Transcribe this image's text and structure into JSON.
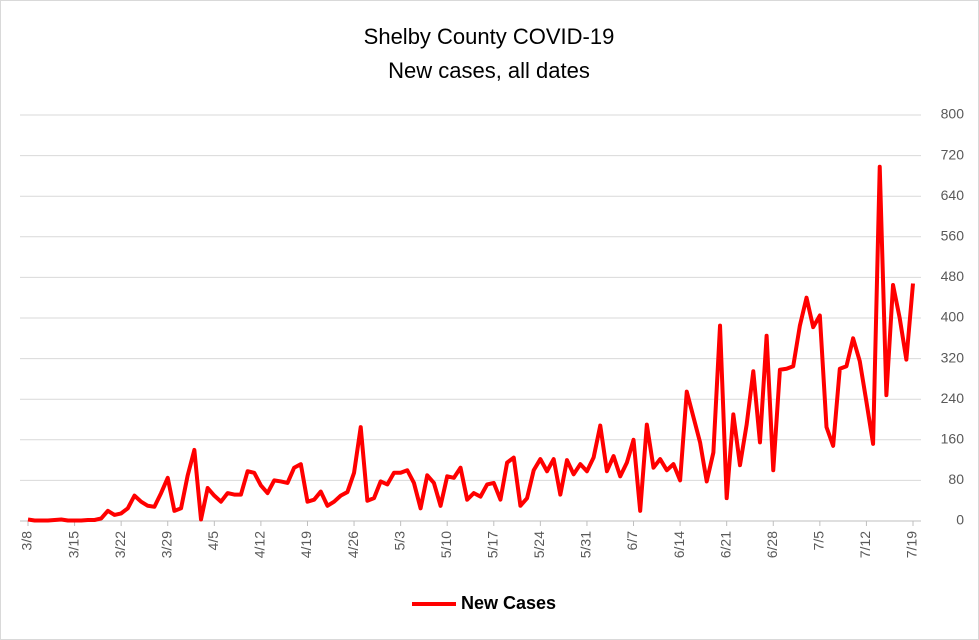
{
  "chart_data": {
    "type": "line",
    "title": "Shelby County COVID-19",
    "subtitle": "New cases, all dates",
    "categories": [
      "3/8",
      null,
      null,
      null,
      null,
      null,
      null,
      "3/15",
      null,
      null,
      null,
      null,
      null,
      null,
      "3/22",
      null,
      null,
      null,
      null,
      null,
      null,
      "3/29",
      null,
      null,
      null,
      null,
      null,
      null,
      "4/5",
      null,
      null,
      null,
      null,
      null,
      null,
      "4/12",
      null,
      null,
      null,
      null,
      null,
      null,
      "4/19",
      null,
      null,
      null,
      null,
      null,
      null,
      "4/26",
      null,
      null,
      null,
      null,
      null,
      null,
      "5/3",
      null,
      null,
      null,
      null,
      null,
      null,
      "5/10",
      null,
      null,
      null,
      null,
      null,
      null,
      "5/17",
      null,
      null,
      null,
      null,
      null,
      null,
      "5/24",
      null,
      null,
      null,
      null,
      null,
      null,
      "5/31",
      null,
      null,
      null,
      null,
      null,
      null,
      "6/7",
      null,
      null,
      null,
      null,
      null,
      null,
      "6/14",
      null,
      null,
      null,
      null,
      null,
      null,
      "6/21",
      null,
      null,
      null,
      null,
      null,
      null,
      "6/28",
      null,
      null,
      null,
      null,
      null,
      null,
      "7/5",
      null,
      null,
      null,
      null,
      null,
      null,
      "7/12",
      null,
      null,
      null,
      null,
      null,
      null,
      "7/19"
    ],
    "series": [
      {
        "name": "New Cases",
        "color": "#ff0000",
        "values": [
          3,
          1,
          1,
          1,
          2,
          3,
          1,
          1,
          1,
          2,
          2,
          5,
          20,
          12,
          15,
          25,
          50,
          38,
          30,
          28,
          55,
          85,
          20,
          25,
          90,
          140,
          3,
          65,
          50,
          38,
          55,
          52,
          52,
          98,
          95,
          70,
          55,
          80,
          78,
          75,
          105,
          112,
          38,
          42,
          58,
          30,
          38,
          50,
          57,
          95,
          185,
          40,
          45,
          78,
          72,
          95,
          95,
          100,
          75,
          25,
          90,
          75,
          30,
          88,
          85,
          105,
          42,
          55,
          48,
          72,
          75,
          42,
          115,
          125,
          30,
          45,
          100,
          122,
          98,
          122,
          52,
          120,
          92,
          112,
          98,
          125,
          188,
          98,
          128,
          88,
          115,
          160,
          20,
          190,
          105,
          122,
          100,
          112,
          80,
          255,
          205,
          155,
          78,
          135,
          385,
          45,
          210,
          110,
          190,
          295,
          155,
          365,
          100,
          298,
          300,
          305,
          385,
          440,
          382,
          405,
          185,
          148,
          300,
          305,
          360,
          315,
          235,
          152,
          698,
          248,
          465,
          400,
          318,
          468
        ]
      }
    ],
    "ylim": [
      0,
      800
    ],
    "yticks": [
      0,
      80,
      160,
      240,
      320,
      400,
      480,
      560,
      640,
      720,
      800
    ],
    "grid": true,
    "legend": "bottom"
  }
}
